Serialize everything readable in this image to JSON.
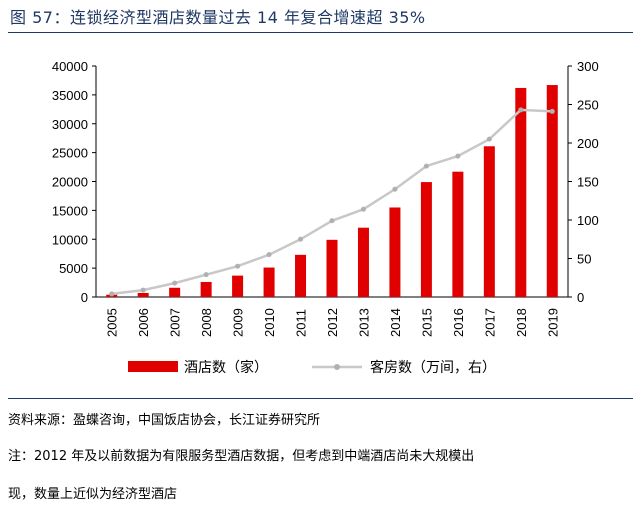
{
  "header": {
    "title": "图 57：连锁经济型酒店数量过去 14 年复合增速超 35%"
  },
  "chart_data": {
    "type": "bar",
    "categories": [
      "2005",
      "2006",
      "2007",
      "2008",
      "2009",
      "2010",
      "2011",
      "2012",
      "2013",
      "2014",
      "2015",
      "2016",
      "2017",
      "2018",
      "2019"
    ],
    "series": [
      {
        "name": "酒店数（家）",
        "type": "bar",
        "axis": "left",
        "color": "#e00000",
        "values": [
          400,
          700,
          1600,
          2600,
          3700,
          5100,
          7300,
          9900,
          12000,
          15500,
          19900,
          21700,
          26100,
          36200,
          36700
        ]
      },
      {
        "name": "客房数（万间，右）",
        "type": "line",
        "axis": "right",
        "color": "#c8c8c8",
        "values": [
          4,
          9,
          18,
          29,
          40,
          55,
          75,
          99,
          114,
          140,
          170,
          183,
          205,
          243,
          241
        ]
      }
    ],
    "y_left": {
      "lim": [
        0,
        40000
      ],
      "ticks": [
        0,
        5000,
        10000,
        15000,
        20000,
        25000,
        30000,
        35000,
        40000
      ]
    },
    "y_right": {
      "lim": [
        0,
        300
      ],
      "ticks": [
        0,
        50,
        100,
        150,
        200,
        250,
        300
      ]
    },
    "legend": {
      "position": "bottom"
    }
  },
  "footer": {
    "source": "资料来源：盈蝶咨询，中国饭店协会，长江证券研究所",
    "note_line1": "注：2012 年及以前数据为有限服务型酒店数据，但考虑到中端酒店尚未大规模出",
    "note_line2": "现，数量上近似为经济型酒店"
  }
}
